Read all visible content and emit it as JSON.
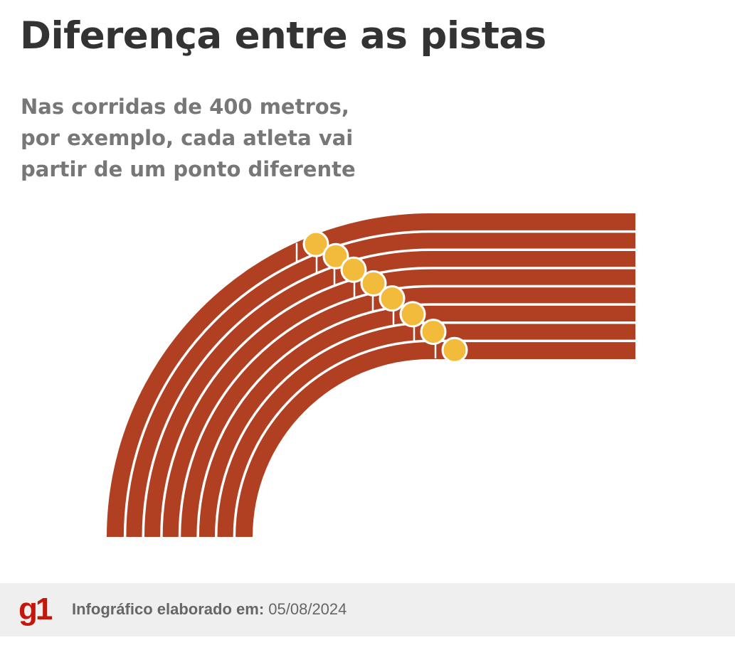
{
  "header": {
    "title": "Diferença entre as pistas",
    "subtitle_lines": [
      "Nas corridas de 400 metros,",
      "por exemplo, cada atleta vai",
      "partir de um ponto diferente"
    ]
  },
  "diagram": {
    "lane_count": 8,
    "colors": {
      "track": "#b13f22",
      "lines": "#ffffff",
      "runner": "#f2bb3c",
      "runner_outline": "#ffffff",
      "background": "#ffffff"
    }
  },
  "footer": {
    "logo_text": "g1",
    "credit_label": "Infográfico elaborado em:",
    "credit_date": "05/08/2024",
    "background": "#efefef",
    "logo_color": "#c4170c"
  }
}
